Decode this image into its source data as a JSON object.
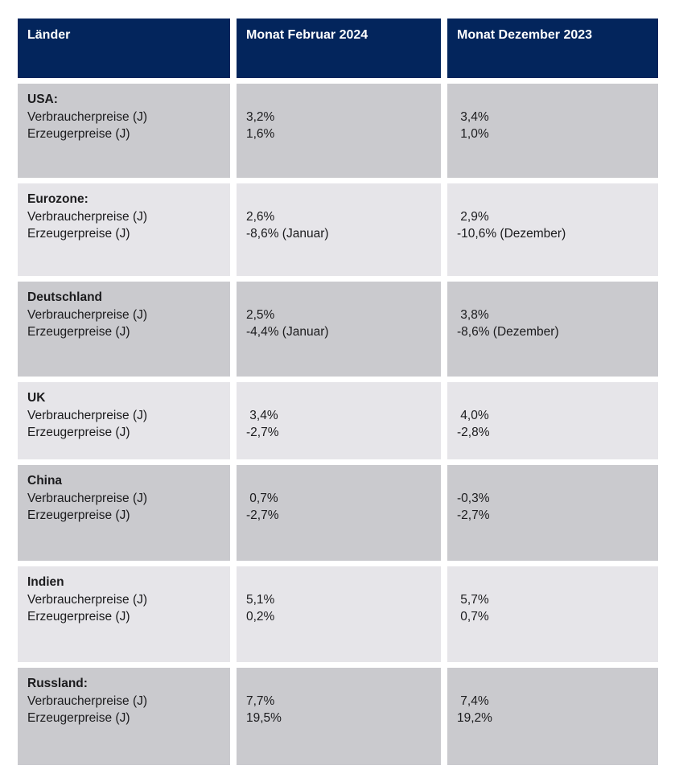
{
  "colors": {
    "header_bg": "#03255c",
    "header_text": "#ffffff",
    "row_dark_bg": "#cacace",
    "row_light_bg": "#e6e5e9",
    "body_text": "#1b1b1d",
    "gutter": "#ffffff"
  },
  "chart_data": {
    "type": "table",
    "columns": [
      "Länder",
      "Monat Februar 2024",
      "Monat Dezember 2023"
    ],
    "rows": [
      {
        "country": "USA:",
        "metric1": "Verbraucherpreise (J)",
        "metric2": "Erzeugerpreise (J)",
        "feb1": "3,2%",
        "feb2": "1,6%",
        "dez1": " 3,4%",
        "dez2": " 1,0%"
      },
      {
        "country": "Eurozone:",
        "metric1": "Verbraucherpreise (J)",
        "metric2": "Erzeugerpreise (J)",
        "feb1": "2,6%",
        "feb2": "-8,6% (Januar)",
        "dez1": " 2,9%",
        "dez2": "-10,6% (Dezember)"
      },
      {
        "country": "Deutschland",
        "metric1": "Verbraucherpreise (J)",
        "metric2": "Erzeugerpreise (J)",
        "feb1": "2,5%",
        "feb2": "-4,4% (Januar)",
        "dez1": " 3,8%",
        "dez2": "-8,6% (Dezember)"
      },
      {
        "country": "UK",
        "metric1": "Verbraucherpreise (J)",
        "metric2": "Erzeugerpreise (J)",
        "feb1": " 3,4%",
        "feb2": "-2,7%",
        "dez1": " 4,0%",
        "dez2": "-2,8%"
      },
      {
        "country": "China",
        "metric1": "Verbraucherpreise (J)",
        "metric2": "Erzeugerpreise (J)",
        "feb1": " 0,7%",
        "feb2": "-2,7%",
        "dez1": "-0,3%",
        "dez2": "-2,7%"
      },
      {
        "country": "Indien",
        "metric1": "Verbraucherpreise (J)",
        "metric2": "Erzeugerpreise (J)",
        "feb1": "5,1%",
        "feb2": "0,2%",
        "dez1": " 5,7%",
        "dez2": " 0,7%"
      },
      {
        "country": "Russland:",
        "metric1": "Verbraucherpreise (J)",
        "metric2": "Erzeugerpreise (J)",
        "feb1": "7,7%",
        "feb2": "19,5%",
        "dez1": " 7,4%",
        "dez2": "19,2%"
      }
    ]
  }
}
